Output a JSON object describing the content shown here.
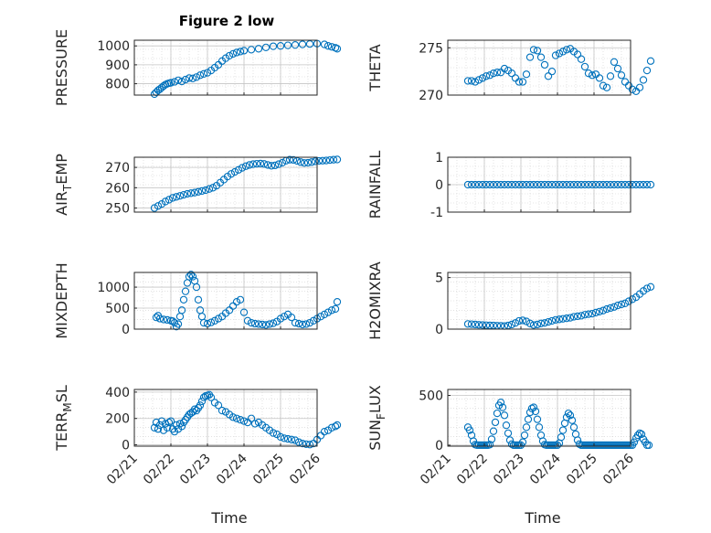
{
  "figure": {
    "title": "Figure 2 low",
    "xlabel": "Time",
    "marker_color": "#0072BD",
    "date_ticks": [
      "02/21",
      "02/22",
      "02/23",
      "02/24",
      "02/25",
      "02/26"
    ]
  },
  "chart_data": [
    {
      "type": "scatter",
      "ylabel": "PRESSURE",
      "ylabel_sub": "",
      "ylim": [
        740,
        1030
      ],
      "yticks": [
        800,
        900,
        1000
      ],
      "x_ticks_shown": false,
      "x": [
        0.55,
        0.6,
        0.65,
        0.7,
        0.75,
        0.8,
        0.85,
        0.9,
        0.95,
        1.0,
        1.1,
        1.2,
        1.3,
        1.4,
        1.5,
        1.6,
        1.7,
        1.8,
        1.9,
        2.0,
        2.1,
        2.2,
        2.3,
        2.4,
        2.5,
        2.6,
        2.7,
        2.8,
        2.9,
        3.0,
        3.2,
        3.4,
        3.6,
        3.8,
        4.0,
        4.2,
        4.4,
        4.6,
        4.8,
        5.0,
        5.2,
        5.3,
        5.4,
        5.5,
        5.55
      ],
      "y": [
        745,
        755,
        765,
        772,
        780,
        788,
        795,
        800,
        803,
        805,
        810,
        818,
        812,
        822,
        830,
        828,
        835,
        845,
        852,
        858,
        870,
        885,
        900,
        920,
        935,
        948,
        958,
        965,
        970,
        975,
        980,
        985,
        992,
        998,
        1000,
        1003,
        1005,
        1008,
        1010,
        1012,
        1008,
        1000,
        995,
        990,
        985
      ]
    },
    {
      "type": "scatter",
      "ylabel": "THETA",
      "ylabel_sub": "",
      "ylim": [
        270,
        275.8
      ],
      "yticks": [
        270,
        275
      ],
      "x_ticks_shown": false,
      "x": [
        0.55,
        0.65,
        0.75,
        0.85,
        0.95,
        1.05,
        1.15,
        1.25,
        1.35,
        1.45,
        1.55,
        1.65,
        1.75,
        1.85,
        1.95,
        2.05,
        2.15,
        2.25,
        2.35,
        2.45,
        2.55,
        2.65,
        2.75,
        2.85,
        2.95,
        3.05,
        3.15,
        3.25,
        3.35,
        3.45,
        3.55,
        3.65,
        3.75,
        3.85,
        3.95,
        4.05,
        4.15,
        4.25,
        4.35,
        4.45,
        4.55,
        4.65,
        4.75,
        4.85,
        4.95,
        5.05,
        5.15,
        5.25,
        5.35,
        5.45,
        5.55
      ],
      "y": [
        271.5,
        271.5,
        271.4,
        271.6,
        271.8,
        272.0,
        272.1,
        272.3,
        272.4,
        272.4,
        272.8,
        272.6,
        272.3,
        271.8,
        271.4,
        271.4,
        272.2,
        274.0,
        274.8,
        274.7,
        274.0,
        273.2,
        272.0,
        272.5,
        274.2,
        274.4,
        274.6,
        274.8,
        274.9,
        274.6,
        274.3,
        273.8,
        273.0,
        272.3,
        272.1,
        272.2,
        271.8,
        271.0,
        270.8,
        272.0,
        273.5,
        272.8,
        272.1,
        271.4,
        271.0,
        270.6,
        270.4,
        270.8,
        271.6,
        272.6,
        273.6
      ]
    },
    {
      "type": "scatter",
      "ylabel": "AIR",
      "ylabel_sub": "T",
      "ylabel_rest": "EMP",
      "ylim": [
        248,
        275
      ],
      "yticks": [
        250,
        260,
        270
      ],
      "x_ticks_shown": false,
      "x": [
        0.55,
        0.65,
        0.75,
        0.85,
        0.95,
        1.05,
        1.15,
        1.25,
        1.35,
        1.45,
        1.55,
        1.65,
        1.75,
        1.85,
        1.95,
        2.05,
        2.15,
        2.25,
        2.35,
        2.45,
        2.55,
        2.65,
        2.75,
        2.85,
        2.95,
        3.05,
        3.15,
        3.25,
        3.35,
        3.45,
        3.55,
        3.65,
        3.75,
        3.85,
        3.95,
        4.05,
        4.15,
        4.25,
        4.35,
        4.45,
        4.55,
        4.65,
        4.75,
        4.85,
        4.95,
        5.05,
        5.15,
        5.25,
        5.35,
        5.45,
        5.55
      ],
      "y": [
        250.0,
        251.0,
        252.0,
        253.2,
        254.1,
        255.0,
        255.5,
        256.0,
        256.5,
        257.0,
        257.3,
        257.6,
        258.0,
        258.4,
        258.8,
        259.4,
        260.0,
        261.0,
        262.5,
        264.0,
        265.5,
        266.8,
        267.8,
        268.8,
        269.8,
        270.6,
        271.2,
        271.6,
        271.8,
        271.9,
        271.7,
        271.2,
        270.8,
        271.0,
        271.6,
        272.3,
        273.3,
        273.8,
        273.7,
        273.2,
        272.6,
        272.2,
        272.3,
        272.6,
        273.0,
        273.2,
        273.3,
        273.4,
        273.6,
        273.8,
        273.9
      ]
    },
    {
      "type": "scatter",
      "ylabel": "RAINFALL",
      "ylabel_sub": "",
      "ylim": [
        -1,
        1
      ],
      "yticks": [
        -1,
        0,
        1
      ],
      "x_ticks_shown": false,
      "x": [
        0.55,
        0.65,
        0.75,
        0.85,
        0.95,
        1.05,
        1.15,
        1.25,
        1.35,
        1.45,
        1.55,
        1.65,
        1.75,
        1.85,
        1.95,
        2.05,
        2.15,
        2.25,
        2.35,
        2.45,
        2.55,
        2.65,
        2.75,
        2.85,
        2.95,
        3.05,
        3.15,
        3.25,
        3.35,
        3.45,
        3.55,
        3.65,
        3.75,
        3.85,
        3.95,
        4.05,
        4.15,
        4.25,
        4.35,
        4.45,
        4.55,
        4.65,
        4.75,
        4.85,
        4.95,
        5.05,
        5.15,
        5.25,
        5.35,
        5.45,
        5.55
      ],
      "y": [
        0,
        0,
        0,
        0,
        0,
        0,
        0,
        0,
        0,
        0,
        0,
        0,
        0,
        0,
        0,
        0,
        0,
        0,
        0,
        0,
        0,
        0,
        0,
        0,
        0,
        0,
        0,
        0,
        0,
        0,
        0,
        0,
        0,
        0,
        0,
        0,
        0,
        0,
        0,
        0,
        0,
        0,
        0,
        0,
        0,
        0,
        0,
        0,
        0,
        0,
        0
      ]
    },
    {
      "type": "scatter",
      "ylabel": "MIXDEPTH",
      "ylabel_sub": "",
      "ylim": [
        0,
        1350
      ],
      "yticks": [
        0,
        500,
        1000
      ],
      "x_ticks_shown": false,
      "x": [
        0.6,
        0.65,
        0.7,
        0.8,
        0.9,
        1.0,
        1.05,
        1.1,
        1.15,
        1.2,
        1.25,
        1.3,
        1.35,
        1.4,
        1.45,
        1.5,
        1.55,
        1.6,
        1.65,
        1.7,
        1.75,
        1.8,
        1.85,
        1.9,
        2.0,
        2.1,
        2.2,
        2.3,
        2.4,
        2.5,
        2.6,
        2.7,
        2.8,
        2.9,
        3.0,
        3.1,
        3.2,
        3.3,
        3.4,
        3.5,
        3.6,
        3.7,
        3.8,
        3.9,
        4.0,
        4.1,
        4.2,
        4.3,
        4.4,
        4.5,
        4.6,
        4.7,
        4.8,
        4.9,
        5.0,
        5.1,
        5.2,
        5.3,
        5.4,
        5.5,
        5.55
      ],
      "y": [
        280,
        320,
        250,
        230,
        220,
        200,
        190,
        150,
        60,
        120,
        300,
        450,
        700,
        900,
        1100,
        1250,
        1300,
        1250,
        1150,
        1000,
        700,
        450,
        300,
        150,
        130,
        160,
        200,
        250,
        300,
        380,
        450,
        550,
        650,
        700,
        400,
        200,
        150,
        130,
        120,
        110,
        100,
        120,
        140,
        180,
        250,
        300,
        350,
        280,
        150,
        130,
        110,
        120,
        150,
        200,
        250,
        300,
        350,
        400,
        450,
        480,
        650
      ]
    },
    {
      "type": "scatter",
      "ylabel": "H2OMIXRA",
      "ylabel_sub": "",
      "ylim": [
        0,
        5.5
      ],
      "yticks": [
        0,
        5
      ],
      "x_ticks_shown": false,
      "x": [
        0.55,
        0.65,
        0.75,
        0.85,
        0.95,
        1.05,
        1.15,
        1.25,
        1.35,
        1.45,
        1.55,
        1.65,
        1.75,
        1.85,
        1.95,
        2.05,
        2.15,
        2.25,
        2.35,
        2.45,
        2.55,
        2.65,
        2.75,
        2.85,
        2.95,
        3.05,
        3.15,
        3.25,
        3.35,
        3.45,
        3.55,
        3.65,
        3.75,
        3.85,
        3.95,
        4.05,
        4.15,
        4.25,
        4.35,
        4.45,
        4.55,
        4.65,
        4.75,
        4.85,
        4.95,
        5.05,
        5.15,
        5.25,
        5.35,
        5.45,
        5.55
      ],
      "y": [
        0.5,
        0.48,
        0.45,
        0.42,
        0.4,
        0.38,
        0.36,
        0.35,
        0.33,
        0.32,
        0.3,
        0.35,
        0.45,
        0.6,
        0.8,
        0.85,
        0.75,
        0.55,
        0.4,
        0.45,
        0.55,
        0.6,
        0.7,
        0.8,
        0.9,
        0.95,
        1.0,
        1.05,
        1.1,
        1.2,
        1.25,
        1.3,
        1.4,
        1.45,
        1.5,
        1.6,
        1.7,
        1.8,
        1.95,
        2.05,
        2.15,
        2.3,
        2.4,
        2.5,
        2.7,
        2.9,
        3.1,
        3.4,
        3.7,
        3.95,
        4.1
      ]
    },
    {
      "type": "scatter",
      "ylabel": "TERR",
      "ylabel_sub": "M",
      "ylabel_rest": "SL",
      "ylim": [
        -10,
        420
      ],
      "yticks": [
        0,
        200,
        400
      ],
      "x_ticks_shown": true,
      "x": [
        0.55,
        0.6,
        0.65,
        0.7,
        0.75,
        0.8,
        0.85,
        0.9,
        0.95,
        1.0,
        1.05,
        1.1,
        1.15,
        1.2,
        1.25,
        1.3,
        1.35,
        1.4,
        1.45,
        1.5,
        1.55,
        1.6,
        1.65,
        1.7,
        1.75,
        1.8,
        1.85,
        1.9,
        1.95,
        2.0,
        2.05,
        2.1,
        2.2,
        2.3,
        2.4,
        2.5,
        2.6,
        2.7,
        2.8,
        2.9,
        3.0,
        3.1,
        3.2,
        3.3,
        3.4,
        3.5,
        3.6,
        3.7,
        3.8,
        3.9,
        4.0,
        4.1,
        4.2,
        4.3,
        4.4,
        4.5,
        4.6,
        4.7,
        4.8,
        4.9,
        5.0,
        5.1,
        5.2,
        5.3,
        5.4,
        5.5,
        5.55
      ],
      "y": [
        130,
        170,
        120,
        150,
        180,
        110,
        160,
        130,
        170,
        180,
        120,
        100,
        150,
        120,
        160,
        140,
        170,
        190,
        210,
        230,
        240,
        250,
        270,
        260,
        280,
        300,
        330,
        360,
        370,
        375,
        380,
        360,
        320,
        300,
        260,
        250,
        230,
        210,
        200,
        190,
        180,
        170,
        200,
        160,
        170,
        150,
        130,
        110,
        90,
        80,
        60,
        50,
        45,
        40,
        35,
        20,
        10,
        5,
        2,
        10,
        40,
        70,
        100,
        110,
        130,
        140,
        150
      ]
    },
    {
      "type": "scatter",
      "ylabel": "SUN",
      "ylabel_sub": "F",
      "ylabel_rest": "LUX",
      "ylim": [
        -10,
        560
      ],
      "yticks": [
        0,
        500
      ],
      "x_ticks_shown": true,
      "x": [
        0.55,
        0.6,
        0.65,
        0.7,
        0.75,
        0.8,
        0.85,
        0.9,
        0.95,
        1.0,
        1.05,
        1.1,
        1.15,
        1.2,
        1.25,
        1.3,
        1.35,
        1.4,
        1.45,
        1.5,
        1.55,
        1.6,
        1.65,
        1.7,
        1.75,
        1.8,
        1.85,
        1.9,
        1.95,
        2.0,
        2.05,
        2.1,
        2.15,
        2.2,
        2.25,
        2.3,
        2.35,
        2.4,
        2.45,
        2.5,
        2.55,
        2.6,
        2.65,
        2.7,
        2.75,
        2.8,
        2.85,
        2.9,
        2.95,
        3.0,
        3.05,
        3.1,
        3.15,
        3.2,
        3.25,
        3.3,
        3.35,
        3.4,
        3.45,
        3.5,
        3.55,
        3.6,
        3.65,
        3.7,
        3.75,
        3.8,
        3.85,
        3.9,
        3.95,
        4.0,
        4.05,
        4.1,
        4.15,
        4.2,
        4.25,
        4.3,
        4.35,
        4.4,
        4.45,
        4.5,
        4.55,
        4.6,
        4.65,
        4.7,
        4.75,
        4.8,
        4.85,
        4.9,
        4.95,
        5.0,
        5.05,
        5.1,
        5.15,
        5.2,
        5.25,
        5.3,
        5.35,
        5.4,
        5.45,
        5.5
      ],
      "y": [
        180,
        150,
        100,
        40,
        5,
        0,
        0,
        0,
        0,
        0,
        0,
        0,
        5,
        60,
        140,
        230,
        320,
        400,
        430,
        380,
        300,
        200,
        120,
        50,
        10,
        0,
        0,
        0,
        0,
        0,
        30,
        100,
        180,
        260,
        330,
        370,
        380,
        340,
        260,
        180,
        100,
        40,
        5,
        0,
        0,
        0,
        0,
        0,
        0,
        0,
        20,
        80,
        150,
        220,
        280,
        320,
        300,
        250,
        180,
        110,
        50,
        10,
        0,
        0,
        0,
        0,
        0,
        0,
        0,
        0,
        0,
        0,
        0,
        0,
        0,
        0,
        0,
        0,
        0,
        0,
        0,
        0,
        0,
        0,
        0,
        0,
        0,
        0,
        0,
        0,
        0,
        30,
        70,
        100,
        120,
        110,
        60,
        30,
        0,
        0
      ]
    }
  ]
}
